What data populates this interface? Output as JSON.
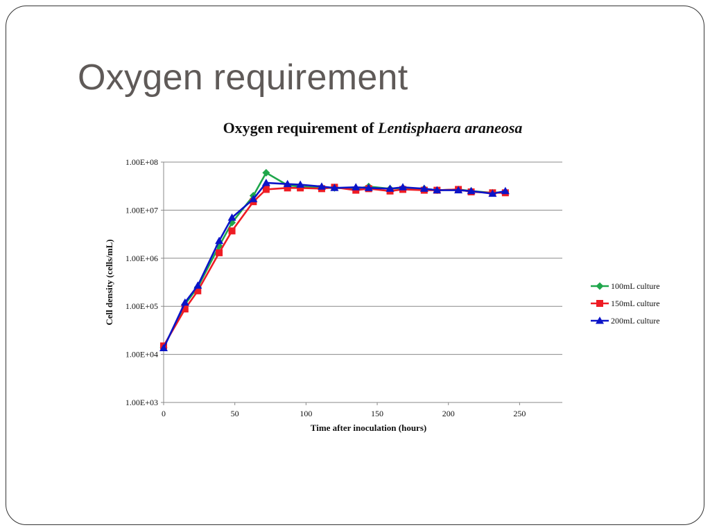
{
  "slide": {
    "title": "Oxygen requirement"
  },
  "chart_data": {
    "type": "line",
    "title_main": "Oxygen requirement of ",
    "title_italic": "Lentisphaera araneosa",
    "xlabel": "Time after inoculation (hours)",
    "ylabel": "Cell density (cells/mL)",
    "xlim": [
      0,
      280
    ],
    "ylim": [
      1000,
      100000000
    ],
    "yscale": "log",
    "x_ticks": [
      0,
      50,
      100,
      150,
      200,
      250
    ],
    "y_ticks": [
      1000,
      10000,
      100000,
      1000000,
      10000000,
      100000000
    ],
    "y_tick_labels": [
      "1.00E+03",
      "1.00E+04",
      "1.00E+05",
      "1.00E+06",
      "1.00E+07",
      "1.00E+08"
    ],
    "grid": "horizontal",
    "legend_position": "right",
    "series": [
      {
        "name": "100mL culture",
        "color": "#1fa64b",
        "marker": "diamond",
        "x": [
          0,
          15,
          24,
          39,
          48,
          63,
          72,
          87,
          96,
          111,
          120,
          135,
          144,
          159,
          168,
          183,
          192,
          207,
          216,
          231,
          240
        ],
        "y": [
          14000,
          110000,
          250000,
          1800000,
          5500000,
          20000000,
          60000000,
          33000000,
          31000000,
          29000000,
          29000000,
          28000000,
          31000000,
          28000000,
          29000000,
          28000000,
          26000000,
          27000000,
          25000000,
          23000000,
          24000000
        ]
      },
      {
        "name": "150mL culture",
        "color": "#ee1c24",
        "marker": "square",
        "x": [
          0,
          15,
          24,
          39,
          48,
          63,
          72,
          87,
          96,
          111,
          120,
          135,
          144,
          159,
          168,
          183,
          192,
          207,
          216,
          231,
          240
        ],
        "y": [
          15000,
          88000,
          210000,
          1300000,
          3700000,
          15000000,
          27000000,
          29000000,
          29000000,
          28000000,
          30000000,
          26000000,
          28000000,
          25000000,
          27000000,
          26000000,
          26000000,
          27000000,
          24000000,
          23000000,
          23000000
        ]
      },
      {
        "name": "200mL culture",
        "color": "#0b14c8",
        "marker": "triangle",
        "x": [
          0,
          15,
          24,
          39,
          48,
          63,
          72,
          87,
          96,
          111,
          120,
          135,
          144,
          159,
          168,
          183,
          192,
          207,
          216,
          231,
          240
        ],
        "y": [
          13500,
          120000,
          270000,
          2300000,
          7000000,
          17000000,
          37000000,
          35000000,
          34000000,
          31000000,
          29000000,
          30000000,
          29000000,
          28000000,
          30000000,
          28000000,
          26000000,
          26000000,
          25000000,
          22000000,
          25000000
        ]
      }
    ]
  }
}
